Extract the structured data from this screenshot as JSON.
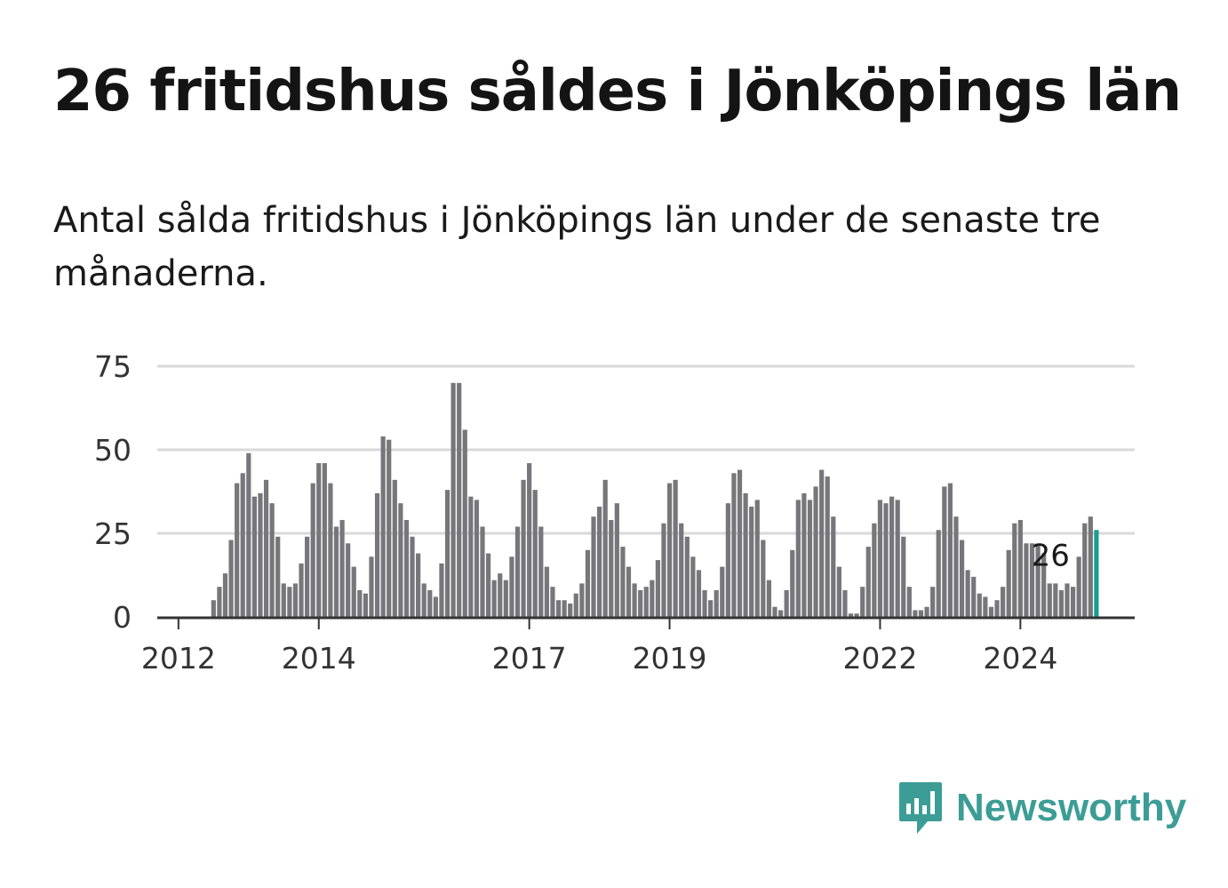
{
  "header": {
    "title": "26 fritidshus såldes i Jönköpings län",
    "subtitle": "Antal sålda fritidshus i Jönköpings län under de senaste tre månaderna."
  },
  "brand": {
    "name": "Newsworthy",
    "color": "#3c9d96"
  },
  "colors": {
    "bar": "#77767b",
    "highlight": "#1a9e8f",
    "grid": "#d9d9d9",
    "axis": "#333333"
  },
  "chart_data": {
    "type": "bar",
    "title": "26 fritidshus såldes i Jönköpings län",
    "xlabel": "",
    "ylabel": "",
    "ylim": [
      0,
      75
    ],
    "yticks": [
      0,
      25,
      50,
      75
    ],
    "grid": true,
    "x_tick_labels": [
      {
        "label": "2012",
        "index": 3
      },
      {
        "label": "2014",
        "index": 27
      },
      {
        "label": "2017",
        "index": 63
      },
      {
        "label": "2019",
        "index": 87
      },
      {
        "label": "2022",
        "index": 123
      },
      {
        "label": "2024",
        "index": 147
      }
    ],
    "values": [
      0,
      0,
      0,
      0,
      0,
      0,
      0,
      0,
      0,
      5,
      9,
      13,
      23,
      40,
      43,
      49,
      36,
      37,
      41,
      34,
      24,
      10,
      9,
      10,
      16,
      24,
      40,
      46,
      46,
      40,
      27,
      29,
      22,
      15,
      8,
      7,
      18,
      37,
      54,
      53,
      41,
      34,
      29,
      24,
      19,
      10,
      8,
      6,
      16,
      38,
      70,
      70,
      56,
      36,
      35,
      27,
      19,
      11,
      13,
      11,
      18,
      27,
      41,
      46,
      38,
      27,
      15,
      9,
      5,
      5,
      4,
      7,
      10,
      20,
      30,
      33,
      41,
      29,
      34,
      21,
      15,
      10,
      8,
      9,
      11,
      17,
      28,
      40,
      41,
      28,
      24,
      18,
      14,
      8,
      5,
      8,
      15,
      34,
      43,
      44,
      37,
      33,
      35,
      23,
      11,
      3,
      2,
      8,
      20,
      35,
      37,
      35,
      39,
      44,
      42,
      30,
      15,
      8,
      1,
      1,
      9,
      21,
      28,
      35,
      34,
      36,
      35,
      24,
      9,
      2,
      2,
      3,
      9,
      26,
      39,
      40,
      30,
      23,
      14,
      12,
      7,
      6,
      3,
      5,
      9,
      20,
      28,
      29,
      22,
      22,
      22,
      19,
      10,
      10,
      8,
      10,
      9,
      18,
      28,
      30,
      26
    ],
    "highlight_last": true,
    "annotations": [
      {
        "text": "26",
        "index": 152
      }
    ]
  }
}
